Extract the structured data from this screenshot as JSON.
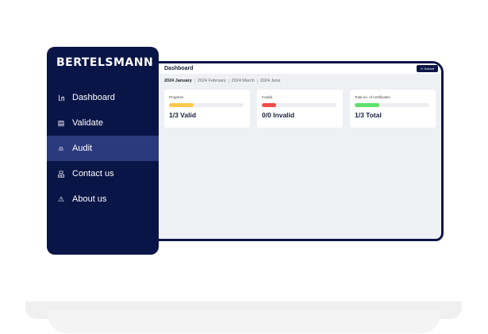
{
  "brand": "BERTELSMANN",
  "sidebar": {
    "items": [
      {
        "label": "Dashboard",
        "icon": "bar-chart-icon",
        "glyph": "📊"
      },
      {
        "label": "Validate",
        "icon": "document-check-icon",
        "glyph": "▤"
      },
      {
        "label": "Audit",
        "icon": "alarm-icon",
        "glyph": "⍝"
      },
      {
        "label": "Contact us",
        "icon": "network-icon",
        "glyph": "品"
      },
      {
        "label": "About us",
        "icon": "warning-icon",
        "glyph": "⚠"
      }
    ],
    "active": "Audit"
  },
  "header": {
    "title": "Dashboard",
    "submit_label": "⊳ Submit"
  },
  "tabs": [
    "2024 January",
    "2024 February",
    "2024 March",
    "2024 June"
  ],
  "cards": [
    {
      "label": "Progress",
      "value": "1/3 Valid",
      "fill": 0.33,
      "color": "#ffc94d"
    },
    {
      "label": "Invalid",
      "value": "0/0 Invalid",
      "fill": 0.19,
      "color": "#f04b4b"
    },
    {
      "label": "Total no. of certificates",
      "value": "1/3 Total",
      "fill": 0.33,
      "color": "#5ee06a"
    }
  ]
}
